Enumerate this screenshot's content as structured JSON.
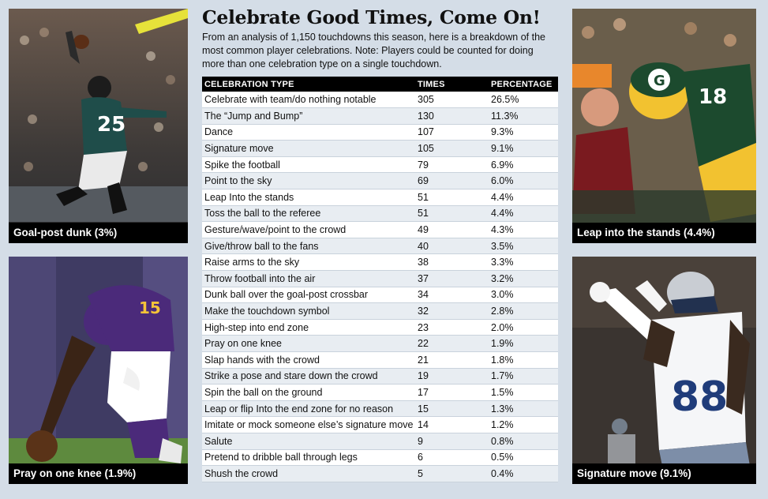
{
  "title": "Celebrate Good Times, Come On!",
  "intro": "From an analysis of 1,150 touchdowns this season, here is a breakdown of the most common player celebrations. Note: Players could be counted for doing more than one celebration type on a single touchdown.",
  "photos": {
    "top_left": {
      "caption": "Goal-post dunk (3%)",
      "jersey": "25"
    },
    "bottom_left": {
      "caption": "Pray on one knee (1.9%)",
      "jersey": "15"
    },
    "top_right": {
      "caption": "Leap into the stands (4.4%)",
      "jersey": "18"
    },
    "bottom_right": {
      "caption": "Signature move (9.1%)",
      "jersey": "88"
    }
  },
  "colors": {
    "background": "#d4dde7",
    "header": "#000000",
    "row_alt": "#e8edf2"
  },
  "chart_data": {
    "type": "table",
    "columns": [
      "CELEBRATION TYPE",
      "TIMES",
      "PERCENTAGE"
    ],
    "rows": [
      [
        "Celebrate with team/do nothing notable",
        "305",
        "26.5%"
      ],
      [
        "The “Jump and Bump”",
        "130",
        "11.3%"
      ],
      [
        "Dance",
        "107",
        "9.3%"
      ],
      [
        "Signature move",
        "105",
        "9.1%"
      ],
      [
        "Spike the football",
        "79",
        "6.9%"
      ],
      [
        "Point to the sky",
        "69",
        "6.0%"
      ],
      [
        "Leap Into the stands",
        "51",
        "4.4%"
      ],
      [
        "Toss the ball to the referee",
        "51",
        "4.4%"
      ],
      [
        "Gesture/wave/point to the crowd",
        "49",
        "4.3%"
      ],
      [
        "Give/throw ball to the fans",
        "40",
        "3.5%"
      ],
      [
        "Raise arms to the sky",
        "38",
        "3.3%"
      ],
      [
        "Throw football into the air",
        "37",
        "3.2%"
      ],
      [
        "Dunk ball over the goal-post crossbar",
        "34",
        "3.0%"
      ],
      [
        "Make the touchdown symbol",
        "32",
        "2.8%"
      ],
      [
        "High-step into end zone",
        "23",
        "2.0%"
      ],
      [
        "Pray on one knee",
        "22",
        "1.9%"
      ],
      [
        "Slap hands with the crowd",
        "21",
        "1.8%"
      ],
      [
        "Strike a pose and stare down the crowd",
        "19",
        "1.7%"
      ],
      [
        "Spin the ball on the ground",
        "17",
        "1.5%"
      ],
      [
        "Leap or flip Into the end zone for no reason",
        "15",
        "1.3%"
      ],
      [
        "Imitate or mock someone else’s signature move",
        "14",
        "1.2%"
      ],
      [
        "Salute",
        "9",
        "0.8%"
      ],
      [
        "Pretend to dribble ball through legs",
        "6",
        "0.5%"
      ],
      [
        "Shush the crowd",
        "5",
        "0.4%"
      ]
    ]
  }
}
